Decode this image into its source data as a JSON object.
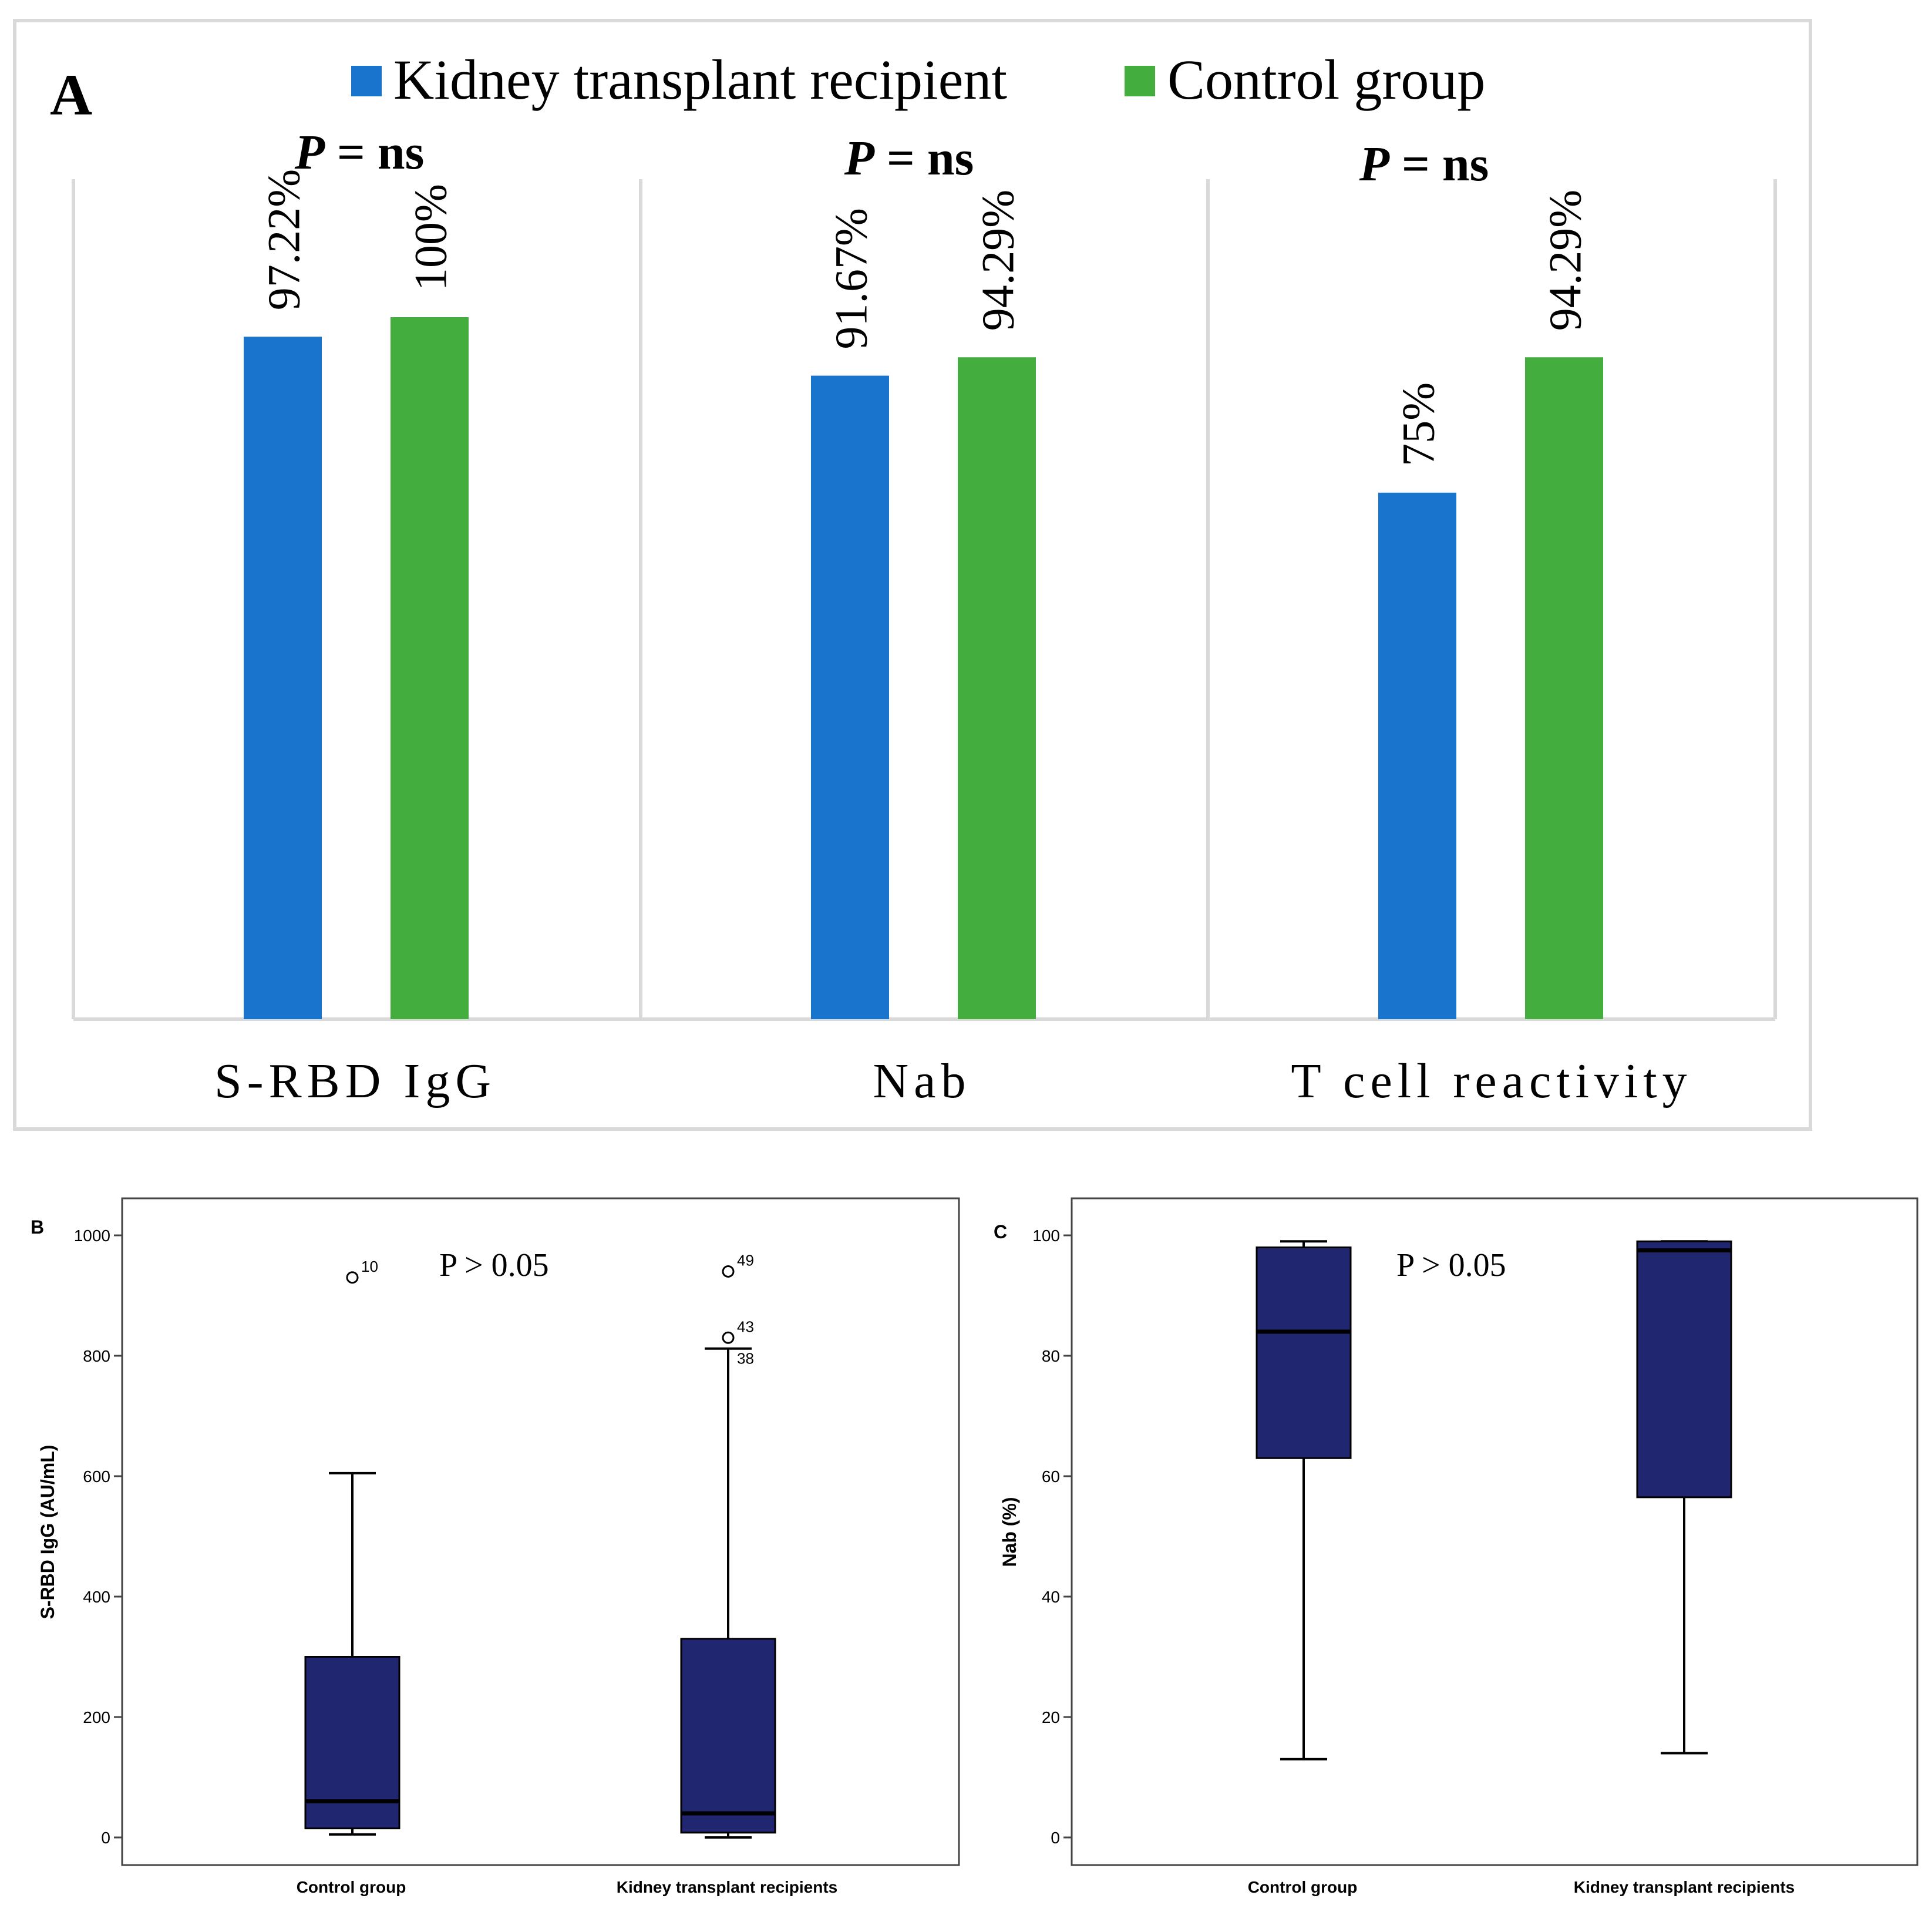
{
  "colors": {
    "kidney": "#1874CD",
    "control": "#43AD3D",
    "box_fill": "#212671",
    "frame": "#d9d9d9",
    "axis": "#444444"
  },
  "chart_data": [
    {
      "panel_label": "A",
      "type": "bar",
      "legend_position": "top-center",
      "series": [
        {
          "name": "Kidney transplant recipient",
          "values": [
            97.22,
            91.67,
            75
          ]
        },
        {
          "name": "Control group",
          "values": [
            100,
            94.29,
            94.29
          ]
        }
      ],
      "categories": [
        "S-RBD IgG",
        "Nab",
        "T cell reactivity"
      ],
      "data_labels": [
        [
          "97.22%",
          "100%"
        ],
        [
          "91.67%",
          "94.29%"
        ],
        [
          "75%",
          "94.29%"
        ]
      ],
      "p_values": [
        {
          "italic": "P",
          "rest": " = ns"
        },
        {
          "italic": "P",
          "rest": " = ns"
        },
        {
          "italic": "P",
          "rest": " = ns"
        }
      ],
      "ylim": [
        0,
        100
      ]
    },
    {
      "panel_label": "B",
      "type": "box",
      "ylabel": "S-RBD IgG (AU/mL)",
      "ylim": [
        0,
        1000
      ],
      "yticks": [
        0,
        200,
        400,
        600,
        800,
        1000
      ],
      "ytick_labels": [
        "0",
        "200",
        "400",
        "600",
        "800",
        "1000"
      ],
      "annotation": "P > 0.05",
      "groups": [
        {
          "name": "Control group",
          "min": 5,
          "q1": 15,
          "median": 60,
          "q3": 300,
          "max": 605,
          "outliers": [
            {
              "value": 930,
              "label": "10"
            }
          ]
        },
        {
          "name": "Kidney transplant recipients",
          "min": 0,
          "q1": 8,
          "median": 40,
          "q3": 330,
          "max": 812,
          "outliers": [
            {
              "value": 940,
              "label": "49"
            },
            {
              "value": 830,
              "label": "43"
            },
            {
              "value": 812,
              "label": "38"
            }
          ]
        }
      ]
    },
    {
      "panel_label": "C",
      "type": "box",
      "ylabel": "Nab (%)",
      "ylim": [
        0,
        100
      ],
      "yticks": [
        0,
        20,
        40,
        60,
        80,
        100
      ],
      "ytick_labels": [
        "0",
        "20",
        "40",
        "60",
        "80",
        "100"
      ],
      "annotation": "P > 0.05",
      "groups": [
        {
          "name": "Control group",
          "min": 13,
          "q1": 63,
          "median": 84,
          "q3": 98,
          "max": 99,
          "outliers": []
        },
        {
          "name": "Kidney transplant recipients",
          "min": 14,
          "q1": 56.5,
          "median": 97.5,
          "q3": 99,
          "max": 99,
          "outliers": []
        }
      ]
    }
  ]
}
